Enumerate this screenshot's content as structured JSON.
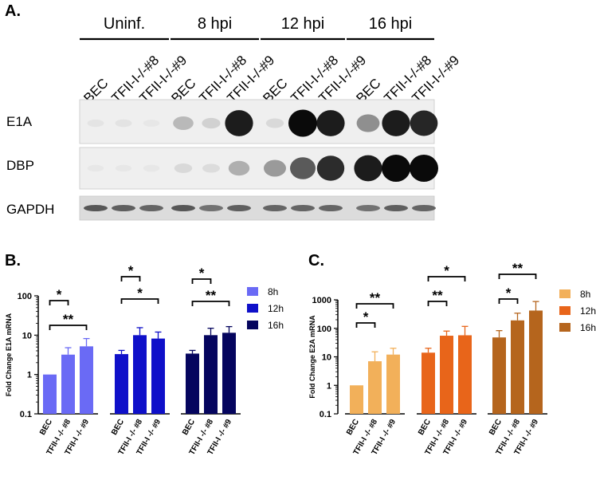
{
  "panelA": {
    "label": "A.",
    "groups": [
      "Uninf.",
      "8 hpi",
      "12 hpi",
      "16 hpi"
    ],
    "lanes": [
      "BEC",
      "TFII-I-/-#8",
      "TFII-I-/-#9",
      "BEC",
      "TFII-I-/-#8",
      "TFII-I-/-#9",
      "BEC",
      "TFII-I-/-#8",
      "TFII-I-/-#9",
      "BEC",
      "TFII-I-/-#8",
      "TFII-I-/-#9"
    ],
    "blot_rows": [
      {
        "name": "E1A",
        "bands": [
          0.05,
          0.06,
          0.03,
          0.35,
          0.2,
          0.95,
          0.15,
          1.0,
          0.95,
          0.55,
          0.95,
          0.92
        ]
      },
      {
        "name": "DBP",
        "bands": [
          0.02,
          0.02,
          0.03,
          0.15,
          0.12,
          0.4,
          0.5,
          0.75,
          0.9,
          0.95,
          1.0,
          1.0
        ]
      },
      {
        "name": "GAPDH",
        "bands": [
          0.75,
          0.72,
          0.7,
          0.75,
          0.65,
          0.72,
          0.7,
          0.7,
          0.7,
          0.65,
          0.72,
          0.7
        ]
      }
    ]
  },
  "chart_data": [
    {
      "panel": "B.",
      "type": "bar",
      "ylabel": "Fold Change E1A mRNA",
      "yscale": "log",
      "ylim": [
        0.1,
        100
      ],
      "yticks": [
        "0.1",
        "1",
        "10",
        "100"
      ],
      "categories": [
        "BEC",
        "TFII-I -/- #8",
        "TFII-I -/- #9"
      ],
      "series": [
        {
          "name": "8h",
          "color": "#6a6af5",
          "values": [
            1.0,
            3.2,
            5.2
          ],
          "err": [
            0,
            1.6,
            3.0
          ]
        },
        {
          "name": "12h",
          "color": "#0f10c9",
          "values": [
            3.3,
            10.0,
            8.2
          ],
          "err": [
            0.8,
            5.5,
            3.8
          ]
        },
        {
          "name": "16h",
          "color": "#05055e",
          "values": [
            3.4,
            10.0,
            11.5
          ],
          "err": [
            0.7,
            5.0,
            5.0
          ]
        }
      ],
      "significance": [
        {
          "series": 0,
          "from": 0,
          "to": 1,
          "label": "*"
        },
        {
          "series": 0,
          "from": 0,
          "to": 2,
          "label": "**"
        },
        {
          "series": 1,
          "from": 0,
          "to": 1,
          "label": "*"
        },
        {
          "series": 1,
          "from": 0,
          "to": 2,
          "label": "*"
        },
        {
          "series": 2,
          "from": 0,
          "to": 1,
          "label": "*"
        },
        {
          "series": 2,
          "from": 0,
          "to": 2,
          "label": "**"
        }
      ],
      "legend": "right"
    },
    {
      "panel": "C.",
      "type": "bar",
      "ylabel": "Fold Change E2A mRNA",
      "yscale": "log",
      "ylim": [
        0.1,
        1000
      ],
      "yticks": [
        "0.1",
        "1",
        "10",
        "100",
        "1000"
      ],
      "categories": [
        "BEC",
        "TFII-I -/- #8",
        "TFII-I -/- #9"
      ],
      "series": [
        {
          "name": "8h",
          "color": "#f2b05a",
          "values": [
            1.0,
            7.0,
            12.0
          ],
          "err": [
            0,
            8.0,
            8.0
          ]
        },
        {
          "name": "12h",
          "color": "#e8651a",
          "values": [
            14.0,
            55.0,
            57.0
          ],
          "err": [
            6.0,
            25.0,
            60.0
          ]
        },
        {
          "name": "16h",
          "color": "#b5651d",
          "values": [
            48.0,
            190.0,
            420.0
          ],
          "err": [
            35.0,
            150.0,
            450.0
          ]
        }
      ],
      "significance": [
        {
          "series": 0,
          "from": 0,
          "to": 1,
          "label": "*"
        },
        {
          "series": 0,
          "from": 0,
          "to": 2,
          "label": "**"
        },
        {
          "series": 1,
          "from": 0,
          "to": 1,
          "label": "**"
        },
        {
          "series": 1,
          "from": 0,
          "to": 2,
          "label": "*"
        },
        {
          "series": 2,
          "from": 0,
          "to": 1,
          "label": "*"
        },
        {
          "series": 2,
          "from": 0,
          "to": 2,
          "label": "**"
        }
      ],
      "legend": "right"
    }
  ]
}
